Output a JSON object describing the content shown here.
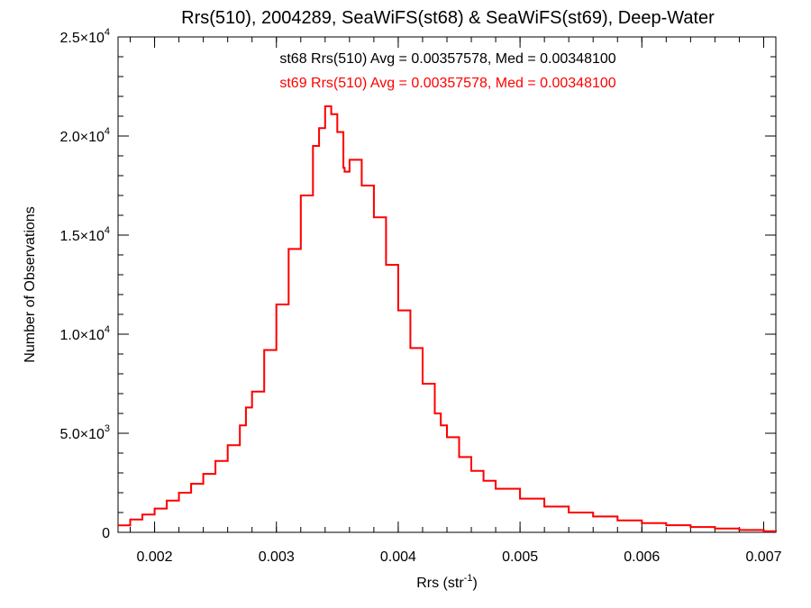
{
  "chart_data": {
    "type": "line",
    "title": "Rrs(510), 2004289, SeaWiFS(st68) & SeaWiFS(st69), Deep-Water",
    "xlabel": {
      "base": "Rrs (str",
      "sup": "-1",
      "close": ")"
    },
    "ylabel": "Number of Observations",
    "xlim": [
      0.0017,
      0.0071
    ],
    "ylim": [
      0,
      25000
    ],
    "x_ticks": [
      {
        "value": 0.002,
        "label": "0.002"
      },
      {
        "value": 0.003,
        "label": "0.003"
      },
      {
        "value": 0.004,
        "label": "0.004"
      },
      {
        "value": 0.005,
        "label": "0.005"
      },
      {
        "value": 0.006,
        "label": "0.006"
      },
      {
        "value": 0.007,
        "label": "0.007"
      }
    ],
    "y_ticks": [
      {
        "value": 0,
        "mant": "0",
        "exp": ""
      },
      {
        "value": 5000,
        "mant": "5.0×10",
        "exp": "3"
      },
      {
        "value": 10000,
        "mant": "1.0×10",
        "exp": "4"
      },
      {
        "value": 15000,
        "mant": "1.5×10",
        "exp": "4"
      },
      {
        "value": 20000,
        "mant": "2.0×10",
        "exp": "4"
      },
      {
        "value": 25000,
        "mant": "2.5×10",
        "exp": "4"
      }
    ],
    "annotations": [
      {
        "text": "st68 Rrs(510) Avg = 0.00357578, Med = 0.00348100",
        "color": "#000000"
      },
      {
        "text": "st69 Rrs(510) Avg = 0.00357578, Med = 0.00348100",
        "color": "#ff0000"
      }
    ],
    "series": [
      {
        "name": "st68",
        "color": "#000000",
        "step": true,
        "x": [
          0.0017,
          0.0018,
          0.0019,
          0.002,
          0.0021,
          0.0022,
          0.0023,
          0.0024,
          0.0025,
          0.0026,
          0.0027,
          0.00275,
          0.0028,
          0.0029,
          0.003,
          0.0031,
          0.0032,
          0.0033,
          0.00335,
          0.0034,
          0.00345,
          0.0035,
          0.00355,
          0.00356,
          0.0036,
          0.0037,
          0.0038,
          0.0039,
          0.004,
          0.0041,
          0.0042,
          0.0043,
          0.00435,
          0.0044,
          0.0045,
          0.0046,
          0.0047,
          0.0048,
          0.005,
          0.0052,
          0.0054,
          0.0056,
          0.0058,
          0.006,
          0.0062,
          0.0064,
          0.0066,
          0.0068,
          0.007,
          0.0071
        ],
        "y": [
          350,
          650,
          900,
          1200,
          1600,
          2000,
          2450,
          2950,
          3600,
          4400,
          5400,
          6300,
          7100,
          9200,
          11500,
          14300,
          17000,
          19500,
          20400,
          21500,
          21100,
          20200,
          18400,
          18200,
          18800,
          17500,
          15900,
          13500,
          11200,
          9300,
          7500,
          6000,
          5400,
          4800,
          3800,
          3100,
          2600,
          2200,
          1700,
          1300,
          1000,
          800,
          600,
          470,
          360,
          270,
          190,
          120,
          60,
          30
        ]
      },
      {
        "name": "st69",
        "color": "#ff0000",
        "step": true,
        "x": [
          0.0017,
          0.0018,
          0.0019,
          0.002,
          0.0021,
          0.0022,
          0.0023,
          0.0024,
          0.0025,
          0.0026,
          0.0027,
          0.00275,
          0.0028,
          0.0029,
          0.003,
          0.0031,
          0.0032,
          0.0033,
          0.00335,
          0.0034,
          0.00345,
          0.0035,
          0.00355,
          0.00356,
          0.0036,
          0.0037,
          0.0038,
          0.0039,
          0.004,
          0.0041,
          0.0042,
          0.0043,
          0.00435,
          0.0044,
          0.0045,
          0.0046,
          0.0047,
          0.0048,
          0.005,
          0.0052,
          0.0054,
          0.0056,
          0.0058,
          0.006,
          0.0062,
          0.0064,
          0.0066,
          0.0068,
          0.007,
          0.0071
        ],
        "y": [
          350,
          650,
          900,
          1200,
          1600,
          2000,
          2450,
          2950,
          3600,
          4400,
          5400,
          6300,
          7100,
          9200,
          11500,
          14300,
          17000,
          19500,
          20400,
          21500,
          21100,
          20200,
          18400,
          18200,
          18800,
          17500,
          15900,
          13500,
          11200,
          9300,
          7500,
          6000,
          5400,
          4800,
          3800,
          3100,
          2600,
          2200,
          1700,
          1300,
          1000,
          800,
          600,
          470,
          360,
          270,
          190,
          120,
          60,
          30
        ]
      }
    ],
    "grid": false,
    "legend": "none"
  }
}
